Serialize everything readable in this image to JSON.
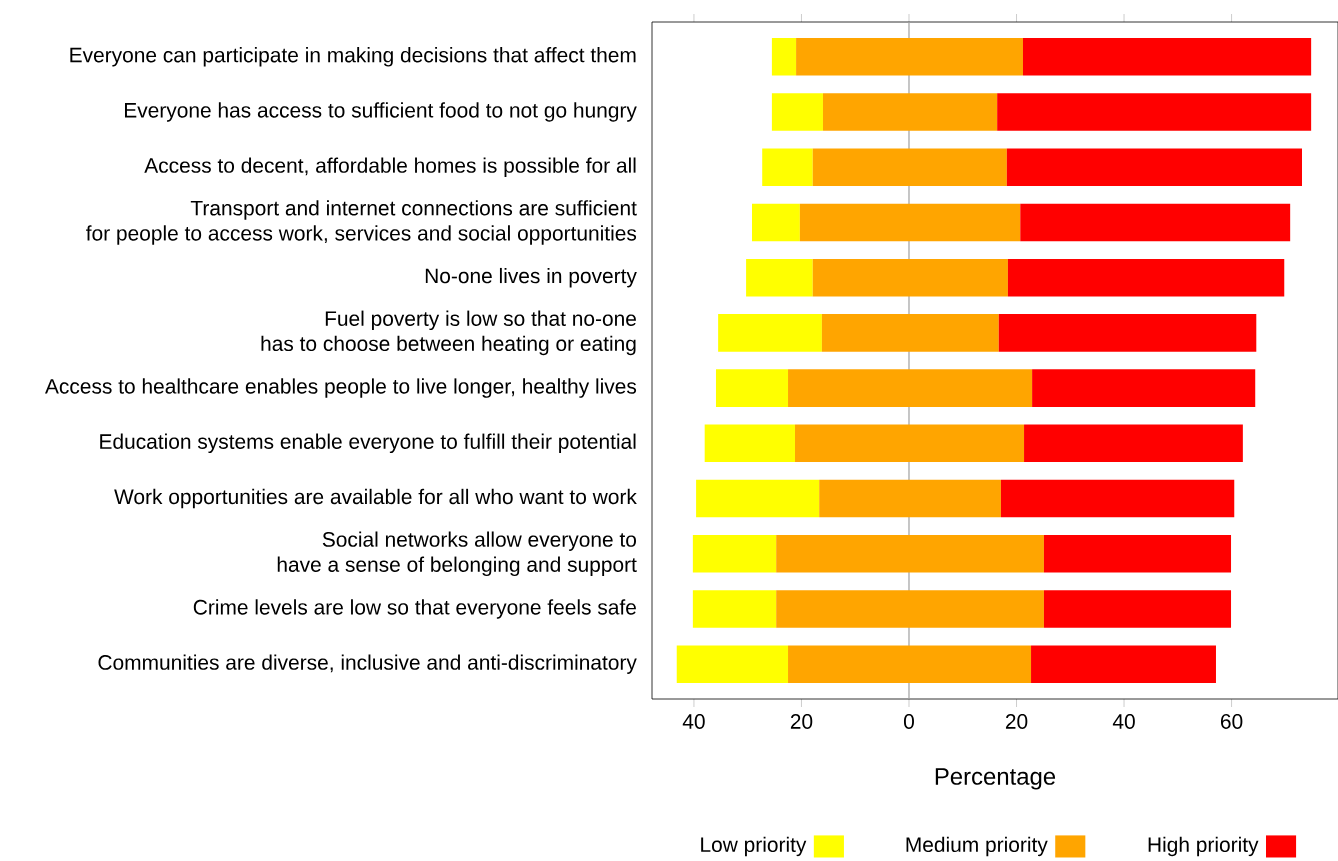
{
  "chart_data": {
    "type": "bar",
    "orientation": "horizontal",
    "xlabel": "Percentage",
    "categories": [
      "Everyone can participate in making decisions that affect them",
      "Everyone has access to sufficient food to not go hungry",
      "Access to decent, affordable homes is possible for all",
      "Transport and internet connections are sufficient\nfor people to access work, services and social opportunities",
      "No-one lives in poverty",
      "Fuel poverty is low so that no-one\nhas to choose between heating or eating",
      "Access to healthcare enables people to live longer, healthy lives",
      "Education systems enable everyone to fulfill their potential",
      "Work opportunities are available for all who want to work",
      "Social networks allow everyone to\nhave a sense of belonging and support",
      "Crime levels are low so that everyone feels safe",
      "Communities are diverse, inclusive and anti-discriminatory"
    ],
    "series": [
      {
        "name": "Low priority",
        "color": "#ffff00",
        "base": [
          -25.5,
          -25.5,
          -27.3,
          -29.2,
          -30.3,
          -35.5,
          -35.9,
          -38.0,
          -39.6,
          -40.2,
          -40.2,
          -43.2
        ],
        "values": [
          4.5,
          9.5,
          9.4,
          8.9,
          12.4,
          19.3,
          13.4,
          16.8,
          22.9,
          15.5,
          15.5,
          20.7
        ]
      },
      {
        "name": "Medium priority",
        "color": "#ffa500",
        "base": [
          -21.0,
          -16.0,
          -17.9,
          -20.3,
          -17.9,
          -16.2,
          -22.5,
          -21.2,
          -16.7,
          -24.7,
          -24.7,
          -22.5
        ],
        "values": [
          42.2,
          32.4,
          36.1,
          41.0,
          36.3,
          32.9,
          45.4,
          42.6,
          33.8,
          49.8,
          49.8,
          45.2
        ]
      },
      {
        "name": "High priority",
        "color": "#ff0000",
        "base": [
          21.2,
          16.4,
          18.2,
          20.7,
          18.4,
          16.7,
          22.9,
          21.4,
          17.1,
          25.1,
          25.1,
          22.7
        ],
        "values": [
          53.6,
          58.4,
          54.9,
          50.2,
          51.4,
          47.9,
          41.5,
          40.7,
          43.4,
          34.8,
          34.8,
          34.4
        ]
      }
    ],
    "xlim": [
      -47.8,
      79.8
    ],
    "xticks": [
      {
        "value": -40,
        "label": "40"
      },
      {
        "value": -20,
        "label": "20"
      },
      0,
      20,
      40,
      60
    ],
    "ref_lines": [
      {
        "axis": "x",
        "value": 0,
        "color": "#a0a0a0"
      }
    ],
    "legend": "bottom"
  }
}
